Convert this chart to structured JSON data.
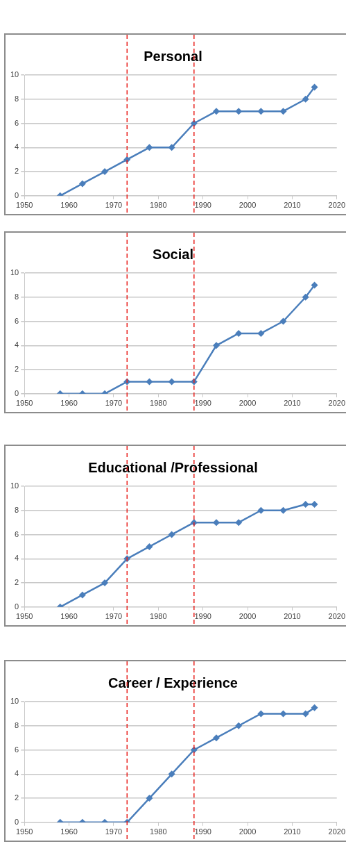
{
  "chart_data": [
    {
      "type": "line",
      "title": "Personal",
      "x": [
        1958,
        1963,
        1968,
        1973,
        1978,
        1983,
        1988,
        1993,
        1998,
        2003,
        2008,
        2013,
        2015
      ],
      "series": [
        {
          "color": "#4a7ebb",
          "values": [
            0,
            1,
            2,
            3,
            4,
            4,
            6,
            7,
            7,
            7,
            7,
            8,
            9
          ]
        }
      ],
      "xlim": [
        1950,
        2020
      ],
      "xticks": [
        1950,
        1960,
        1970,
        1980,
        1990,
        2000,
        2010,
        2020
      ],
      "ylim": [
        0,
        10
      ],
      "yticks": [
        0,
        2,
        4,
        6,
        8,
        10
      ],
      "grid": "y",
      "legend": false,
      "marker": "diamond",
      "line_style": "solid",
      "ref_lines": [
        {
          "axis": "x",
          "value": 1973,
          "color": "#e8201c",
          "line_style": "dashed"
        },
        {
          "axis": "x",
          "value": 1988,
          "color": "#e8201c",
          "line_style": "dashed"
        }
      ]
    },
    {
      "type": "line",
      "title": "Social",
      "x": [
        1958,
        1963,
        1968,
        1973,
        1978,
        1983,
        1988,
        1993,
        1998,
        2003,
        2008,
        2013,
        2015
      ],
      "series": [
        {
          "color": "#4a7ebb",
          "values": [
            0,
            0,
            0,
            1,
            1,
            1,
            1,
            4,
            5,
            5,
            6,
            8,
            9
          ]
        }
      ],
      "xlim": [
        1950,
        2020
      ],
      "xticks": [
        1950,
        1960,
        1970,
        1980,
        1990,
        2000,
        2010,
        2020
      ],
      "ylim": [
        0,
        10
      ],
      "yticks": [
        0,
        2,
        4,
        6,
        8,
        10
      ],
      "grid": "y",
      "legend": false,
      "marker": "diamond",
      "line_style": "solid",
      "ref_lines": [
        {
          "axis": "x",
          "value": 1973,
          "color": "#e8201c",
          "line_style": "dashed"
        },
        {
          "axis": "x",
          "value": 1988,
          "color": "#e8201c",
          "line_style": "dashed"
        }
      ]
    },
    {
      "type": "line",
      "title": "Educational /Professional",
      "x": [
        1958,
        1963,
        1968,
        1973,
        1978,
        1983,
        1988,
        1993,
        1998,
        2003,
        2008,
        2013,
        2015
      ],
      "series": [
        {
          "color": "#4a7ebb",
          "values": [
            0,
            1,
            2,
            4,
            5,
            6,
            7,
            7,
            7,
            8,
            8,
            8.5,
            8.5
          ]
        }
      ],
      "xlim": [
        1950,
        2020
      ],
      "xticks": [
        1950,
        1960,
        1970,
        1980,
        1990,
        2000,
        2010,
        2020
      ],
      "ylim": [
        0,
        10
      ],
      "yticks": [
        0,
        2,
        4,
        6,
        8,
        10
      ],
      "grid": "y",
      "legend": false,
      "marker": "diamond",
      "line_style": "solid",
      "ref_lines": [
        {
          "axis": "x",
          "value": 1973,
          "color": "#e8201c",
          "line_style": "dashed"
        },
        {
          "axis": "x",
          "value": 1988,
          "color": "#e8201c",
          "line_style": "dashed"
        }
      ]
    },
    {
      "type": "line",
      "title": "Career / Experience",
      "x": [
        1958,
        1963,
        1968,
        1973,
        1978,
        1983,
        1988,
        1993,
        1998,
        2003,
        2008,
        2013,
        2015
      ],
      "series": [
        {
          "color": "#4a7ebb",
          "values": [
            0,
            0,
            0,
            0,
            2,
            4,
            6,
            7,
            8,
            9,
            9,
            9,
            9.5
          ]
        }
      ],
      "xlim": [
        1950,
        2020
      ],
      "xticks": [
        1950,
        1960,
        1970,
        1980,
        1990,
        2000,
        2010,
        2020
      ],
      "ylim": [
        0,
        10
      ],
      "yticks": [
        0,
        2,
        4,
        6,
        8,
        10
      ],
      "grid": "y",
      "legend": false,
      "marker": "diamond",
      "line_style": "solid",
      "ref_lines": [
        {
          "axis": "x",
          "value": 1973,
          "color": "#e8201c",
          "line_style": "dashed"
        },
        {
          "axis": "x",
          "value": 1988,
          "color": "#e8201c",
          "line_style": "dashed"
        }
      ]
    }
  ]
}
